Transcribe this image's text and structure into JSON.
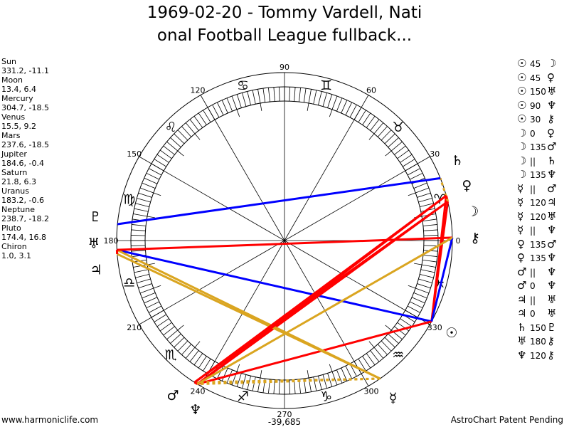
{
  "title": [
    "1969-02-20 - Tommy Vardell, Nati",
    "onal Football League fullback..."
  ],
  "planets": [
    {
      "name": "Sun",
      "glyph": "☉",
      "coords": "331.2, -11.1",
      "lon": 331.2
    },
    {
      "name": "Moon",
      "glyph": "☽",
      "coords": "13.4, 6.4",
      "lon": 13.4
    },
    {
      "name": "Mercury",
      "glyph": "☿",
      "coords": "304.7, -18.5",
      "lon": 304.7
    },
    {
      "name": "Venus",
      "glyph": "♀",
      "coords": "15.5, 9.2",
      "lon": 15.5
    },
    {
      "name": "Mars",
      "glyph": "♂",
      "coords": "237.6, -18.5",
      "lon": 237.6
    },
    {
      "name": "Jupiter",
      "glyph": "♃",
      "coords": "184.6, -0.4",
      "lon": 184.6
    },
    {
      "name": "Saturn",
      "glyph": "♄",
      "coords": "21.8, 6.3",
      "lon": 21.8
    },
    {
      "name": "Uranus",
      "glyph": "♅",
      "coords": "183.2, -0.6",
      "lon": 183.2
    },
    {
      "name": "Neptune",
      "glyph": "♆",
      "coords": "238.7, -18.2",
      "lon": 238.7
    },
    {
      "name": "Pluto",
      "glyph": "♇",
      "coords": "174.4, 16.8",
      "lon": 174.4
    },
    {
      "name": "Chiron",
      "glyph": "⚷",
      "coords": "1.0, 3.1",
      "lon": 1.0
    }
  ],
  "aspects": [
    {
      "p1": 0,
      "aspect": "45",
      "p2": 1
    },
    {
      "p1": 0,
      "aspect": "45",
      "p2": 3
    },
    {
      "p1": 0,
      "aspect": "150",
      "p2": 7
    },
    {
      "p1": 0,
      "aspect": "90",
      "p2": 8
    },
    {
      "p1": 0,
      "aspect": "30",
      "p2": 10
    },
    {
      "p1": 1,
      "aspect": "0",
      "p2": 3
    },
    {
      "p1": 1,
      "aspect": "135",
      "p2": 4
    },
    {
      "p1": 1,
      "aspect": "||",
      "p2": 6
    },
    {
      "p1": 1,
      "aspect": "135",
      "p2": 8
    },
    {
      "p1": 2,
      "aspect": "||",
      "p2": 4
    },
    {
      "p1": 2,
      "aspect": "120",
      "p2": 5
    },
    {
      "p1": 2,
      "aspect": "120",
      "p2": 7
    },
    {
      "p1": 2,
      "aspect": "||",
      "p2": 8
    },
    {
      "p1": 3,
      "aspect": "135",
      "p2": 4
    },
    {
      "p1": 3,
      "aspect": "135",
      "p2": 8
    },
    {
      "p1": 4,
      "aspect": "||",
      "p2": 8
    },
    {
      "p1": 4,
      "aspect": "0",
      "p2": 8
    },
    {
      "p1": 5,
      "aspect": "||",
      "p2": 7
    },
    {
      "p1": 5,
      "aspect": "0",
      "p2": 7
    },
    {
      "p1": 6,
      "aspect": "150",
      "p2": 9
    },
    {
      "p1": 7,
      "aspect": "180",
      "p2": 10
    },
    {
      "p1": 8,
      "aspect": "120",
      "p2": 10
    }
  ],
  "aspect_colors": {
    "red": "#ff0000",
    "blue": "#0000ff",
    "gold": "#daa520"
  },
  "chart_data": {
    "type": "scatter",
    "title": "1969-02-20 - Tommy Vardell, National Football League fullback...",
    "degree_labels": [
      "0",
      "30",
      "60",
      "90",
      "120",
      "150",
      "180",
      "210",
      "240",
      "270",
      "300",
      "330"
    ],
    "zodiac": [
      "♈",
      "♉",
      "♊",
      "♋",
      "♌",
      "♍",
      "♎",
      "♏",
      "♐",
      "♑",
      "♒",
      "♓"
    ],
    "bottom_value": "-39,685"
  },
  "footer": {
    "left": "www.harmoniclife.com",
    "right": "AstroChart Patent Pending"
  }
}
